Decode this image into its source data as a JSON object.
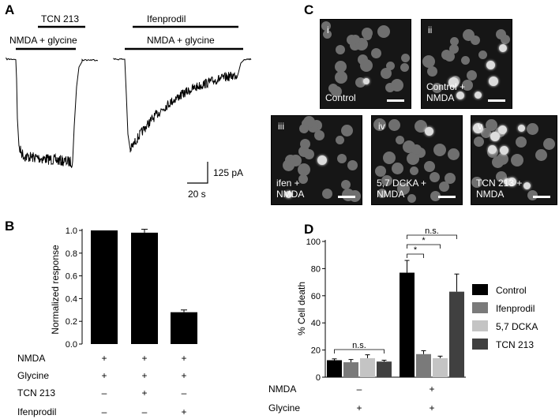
{
  "panel_a": {
    "label": "A",
    "trace1_top_label": "TCN 213",
    "trace1_bottom_label": "NMDA + glycine",
    "trace2_top_label": "Ifenprodil",
    "trace2_bottom_label": "NMDA + glycine",
    "scale_current": "125 pA",
    "scale_time": "20 s"
  },
  "panel_b": {
    "label": "B",
    "chart_data": {
      "type": "bar",
      "ylabel": "Normalized response",
      "ylim": [
        0,
        1.0
      ],
      "yticks": [
        "0.0",
        "0.2",
        "0.4",
        "0.6",
        "0.8",
        "1.0"
      ],
      "ytick_values": [
        0,
        0.2,
        0.4,
        0.6,
        0.8,
        1.0
      ],
      "values": [
        1.0,
        0.98,
        0.28
      ],
      "errors": [
        0,
        0.03,
        0.02
      ],
      "color": "#000000",
      "condition_rows": [
        {
          "name": "NMDA",
          "marks": [
            "+",
            "+",
            "+"
          ]
        },
        {
          "name": "Glycine",
          "marks": [
            "+",
            "+",
            "+"
          ]
        },
        {
          "name": "TCN 213",
          "marks": [
            "–",
            "+",
            "–"
          ]
        },
        {
          "name": "Ifenprodil",
          "marks": [
            "–",
            "–",
            "+"
          ]
        }
      ]
    }
  },
  "panel_c": {
    "label": "C",
    "images": [
      {
        "num": "i",
        "caption": "Control"
      },
      {
        "num": "ii",
        "caption": "Control +\nNMDA"
      },
      {
        "num": "iii",
        "caption": "ifen +\nNMDA"
      },
      {
        "num": "iv",
        "caption": "5,7 DCKA +\nNMDA"
      },
      {
        "num": "v",
        "caption": "TCN 213 +\nNMDA"
      }
    ]
  },
  "panel_d": {
    "label": "D",
    "chart_data": {
      "type": "bar",
      "ylabel": "% Cell death",
      "ylim": [
        0,
        100
      ],
      "yticks": [
        "0",
        "20",
        "40",
        "60",
        "80",
        "100"
      ],
      "ytick_values": [
        0,
        20,
        40,
        60,
        80,
        100
      ],
      "groups": 2,
      "series": [
        {
          "name": "Control",
          "color": "#000000",
          "values": [
            12.5,
            77
          ],
          "errors": [
            1,
            9
          ]
        },
        {
          "name": "Ifenprodil",
          "color": "#7a7a7a",
          "values": [
            11,
            17
          ],
          "errors": [
            2,
            2.5
          ]
        },
        {
          "name": "5,7 DCKA",
          "color": "#c4c4c4",
          "values": [
            14,
            14
          ],
          "errors": [
            2.5,
            1.5
          ]
        },
        {
          "name": "TCN 213",
          "color": "#404040",
          "values": [
            11.5,
            63
          ],
          "errors": [
            1,
            13
          ]
        }
      ],
      "annotations": {
        "ns": "n.s.",
        "star": "*"
      },
      "condition_rows": [
        {
          "name": "NMDA",
          "marks": [
            "–",
            "+"
          ]
        },
        {
          "name": "Glycine",
          "marks": [
            "+",
            "+"
          ]
        }
      ]
    }
  }
}
